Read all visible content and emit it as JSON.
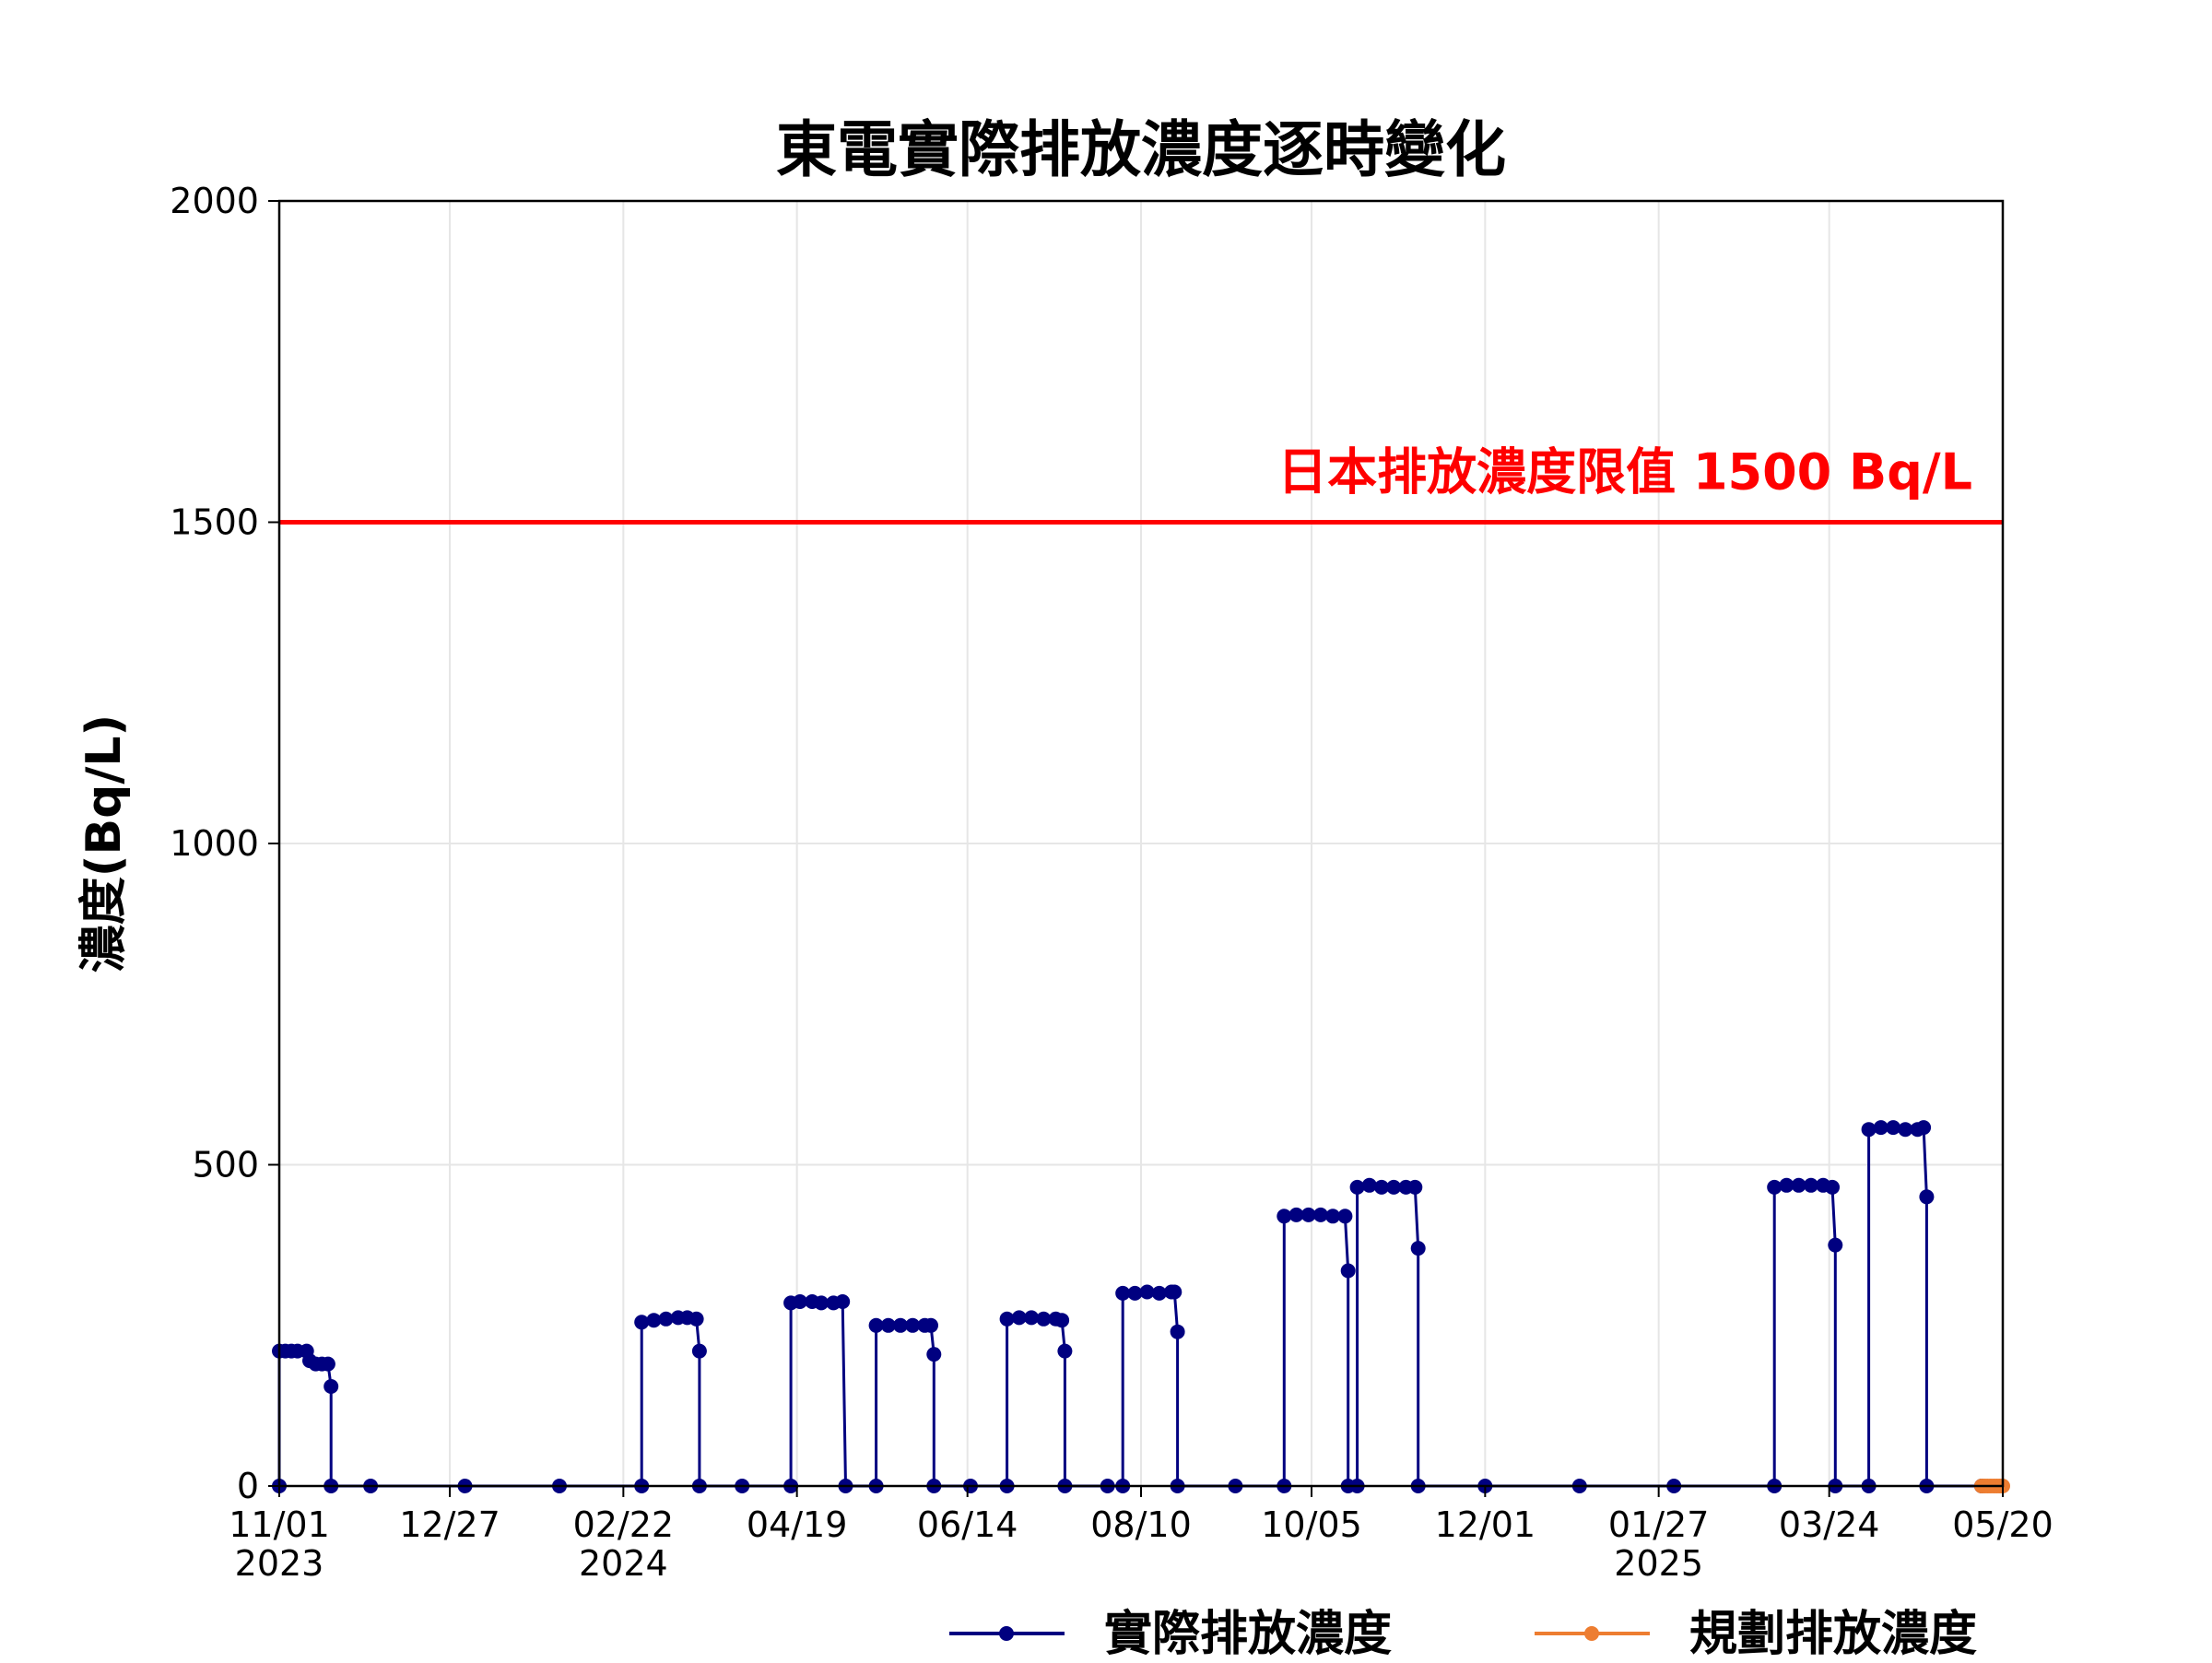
{
  "chart_data": {
    "type": "line",
    "title": "東電實際排放濃度逐時變化",
    "ylabel": "濃度(Bq/L)",
    "xlabel": "",
    "ylim": [
      0,
      2000
    ],
    "xlim": [
      "2023-11-01",
      "2025-05-20"
    ],
    "yticks": [
      "0",
      "500",
      "1000",
      "1500",
      "2000"
    ],
    "xticks": [
      {
        "date": "2023-11-01",
        "label": "11/01",
        "year": "2023"
      },
      {
        "date": "2023-12-27",
        "label": "12/27",
        "year": ""
      },
      {
        "date": "2024-02-22",
        "label": "02/22",
        "year": "2024"
      },
      {
        "date": "2024-04-19",
        "label": "04/19",
        "year": ""
      },
      {
        "date": "2024-06-14",
        "label": "06/14",
        "year": ""
      },
      {
        "date": "2024-08-10",
        "label": "08/10",
        "year": ""
      },
      {
        "date": "2024-10-05",
        "label": "10/05",
        "year": ""
      },
      {
        "date": "2024-12-01",
        "label": "12/01",
        "year": ""
      },
      {
        "date": "2025-01-27",
        "label": "01/27",
        "year": "2025"
      },
      {
        "date": "2025-03-24",
        "label": "03/24",
        "year": ""
      },
      {
        "date": "2025-05-20",
        "label": "05/20",
        "year": ""
      }
    ],
    "grid": true,
    "legend_position": "bottom",
    "limit": {
      "value": 1500,
      "label": "日本排放濃度限值 1500 Bq/L",
      "color": "#ff0000"
    },
    "series": [
      {
        "name": "實際排放濃度",
        "color": "#000080",
        "values": [
          [
            "2023-11-01",
            0
          ],
          [
            "2023-11-01",
            210
          ],
          [
            "2023-11-03",
            210
          ],
          [
            "2023-11-05",
            210
          ],
          [
            "2023-11-07",
            210
          ],
          [
            "2023-11-10",
            210
          ],
          [
            "2023-11-11",
            195
          ],
          [
            "2023-11-13",
            190
          ],
          [
            "2023-11-15",
            190
          ],
          [
            "2023-11-17",
            190
          ],
          [
            "2023-11-18",
            155
          ],
          [
            "2023-11-18",
            0
          ],
          [
            "2023-12-01",
            0
          ],
          [
            "2024-01-01",
            0
          ],
          [
            "2024-02-01",
            0
          ],
          [
            "2024-02-28",
            0
          ],
          [
            "2024-02-28",
            255
          ],
          [
            "2024-03-03",
            258
          ],
          [
            "2024-03-07",
            260
          ],
          [
            "2024-03-11",
            262
          ],
          [
            "2024-03-14",
            262
          ],
          [
            "2024-03-17",
            260
          ],
          [
            "2024-03-18",
            210
          ],
          [
            "2024-03-18",
            0
          ],
          [
            "2024-04-01",
            0
          ],
          [
            "2024-04-17",
            0
          ],
          [
            "2024-04-17",
            285
          ],
          [
            "2024-04-20",
            287
          ],
          [
            "2024-04-24",
            287
          ],
          [
            "2024-04-27",
            285
          ],
          [
            "2024-05-01",
            285
          ],
          [
            "2024-05-04",
            287
          ],
          [
            "2024-05-05",
            0
          ],
          [
            "2024-05-15",
            0
          ],
          [
            "2024-05-15",
            250
          ],
          [
            "2024-05-19",
            250
          ],
          [
            "2024-05-23",
            250
          ],
          [
            "2024-05-27",
            250
          ],
          [
            "2024-05-31",
            250
          ],
          [
            "2024-06-02",
            250
          ],
          [
            "2024-06-03",
            205
          ],
          [
            "2024-06-03",
            0
          ],
          [
            "2024-06-15",
            0
          ],
          [
            "2024-06-27",
            0
          ],
          [
            "2024-06-27",
            260
          ],
          [
            "2024-07-01",
            262
          ],
          [
            "2024-07-05",
            262
          ],
          [
            "2024-07-09",
            260
          ],
          [
            "2024-07-13",
            260
          ],
          [
            "2024-07-15",
            258
          ],
          [
            "2024-07-16",
            210
          ],
          [
            "2024-07-16",
            0
          ],
          [
            "2024-07-30",
            0
          ],
          [
            "2024-08-04",
            0
          ],
          [
            "2024-08-04",
            300
          ],
          [
            "2024-08-08",
            300
          ],
          [
            "2024-08-12",
            302
          ],
          [
            "2024-08-16",
            300
          ],
          [
            "2024-08-20",
            302
          ],
          [
            "2024-08-21",
            302
          ],
          [
            "2024-08-22",
            240
          ],
          [
            "2024-08-22",
            0
          ],
          [
            "2024-09-10",
            0
          ],
          [
            "2024-09-26",
            0
          ],
          [
            "2024-09-26",
            420
          ],
          [
            "2024-09-30",
            422
          ],
          [
            "2024-10-04",
            422
          ],
          [
            "2024-10-08",
            422
          ],
          [
            "2024-10-12",
            420
          ],
          [
            "2024-10-16",
            420
          ],
          [
            "2024-10-17",
            335
          ],
          [
            "2024-10-17",
            0
          ],
          [
            "2024-10-20",
            0
          ],
          [
            "2024-10-20",
            465
          ],
          [
            "2024-10-24",
            468
          ],
          [
            "2024-10-28",
            465
          ],
          [
            "2024-11-01",
            465
          ],
          [
            "2024-11-05",
            465
          ],
          [
            "2024-11-08",
            465
          ],
          [
            "2024-11-09",
            370
          ],
          [
            "2024-11-09",
            0
          ],
          [
            "2024-12-01",
            0
          ],
          [
            "2025-01-01",
            0
          ],
          [
            "2025-02-01",
            0
          ],
          [
            "2025-03-06",
            0
          ],
          [
            "2025-03-06",
            465
          ],
          [
            "2025-03-10",
            468
          ],
          [
            "2025-03-14",
            468
          ],
          [
            "2025-03-18",
            468
          ],
          [
            "2025-03-22",
            468
          ],
          [
            "2025-03-25",
            465
          ],
          [
            "2025-03-26",
            375
          ],
          [
            "2025-03-26",
            0
          ],
          [
            "2025-04-06",
            0
          ],
          [
            "2025-04-06",
            555
          ],
          [
            "2025-04-10",
            558
          ],
          [
            "2025-04-14",
            558
          ],
          [
            "2025-04-18",
            555
          ],
          [
            "2025-04-22",
            555
          ],
          [
            "2025-04-24",
            558
          ],
          [
            "2025-04-25",
            450
          ],
          [
            "2025-04-25",
            0
          ],
          [
            "2025-05-13",
            0
          ]
        ]
      },
      {
        "name": "規劃排放濃度",
        "color": "#ed7d31",
        "values": [
          [
            "2025-05-13",
            0
          ],
          [
            "2025-05-14",
            0
          ],
          [
            "2025-05-15",
            0
          ],
          [
            "2025-05-16",
            0
          ],
          [
            "2025-05-17",
            0
          ],
          [
            "2025-05-18",
            0
          ],
          [
            "2025-05-19",
            0
          ],
          [
            "2025-05-20",
            0
          ]
        ]
      }
    ]
  }
}
